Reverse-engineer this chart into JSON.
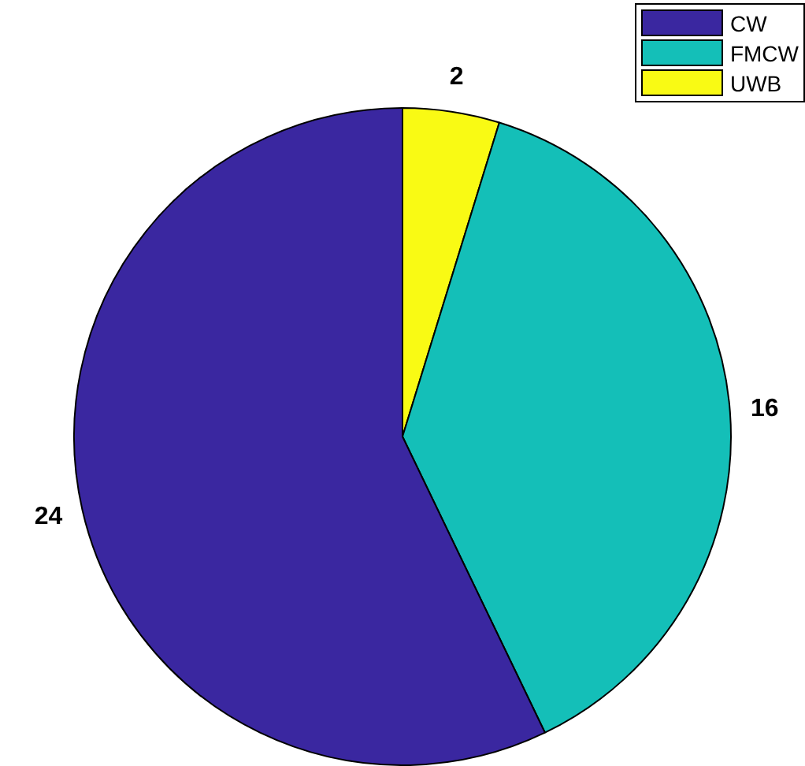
{
  "chart_data": {
    "type": "pie",
    "categories": [
      "CW",
      "FMCW",
      "UWB"
    ],
    "values": [
      24,
      16,
      2
    ],
    "colors": [
      "#3a27a0",
      "#14bfb8",
      "#f9fa14"
    ],
    "data_labels": true,
    "legend": "top right"
  }
}
